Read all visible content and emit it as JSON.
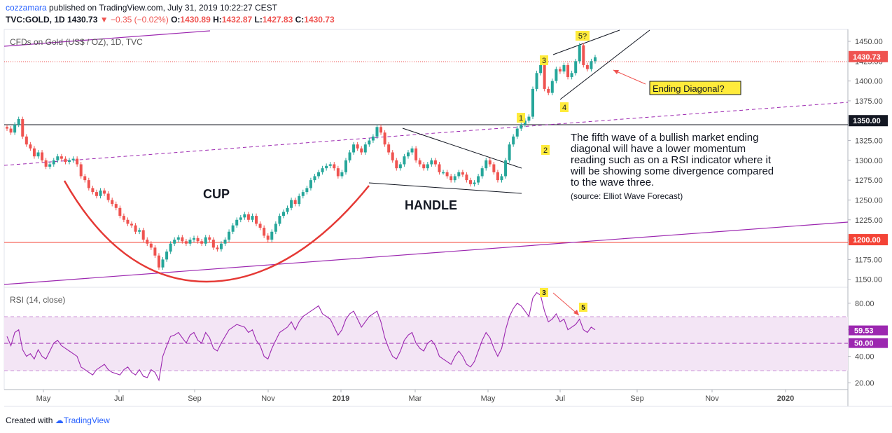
{
  "header": {
    "user": "cozzamara",
    "published": "published on TradingView.com, July 31, 2019 10:22:27 CEST",
    "symbol": "TVC:GOLD, 1D",
    "last": "1430.73",
    "arrow": "▼",
    "change": "−0.35 (−0.02%)",
    "o_label": "O:",
    "o_val": "1430.89",
    "h_label": "H:",
    "h_val": "1432.87",
    "l_label": "L:",
    "l_val": "1427.83",
    "c_label": "C:",
    "c_val": "1430.73"
  },
  "footer": {
    "created": "Created with",
    "brand": "TradingView"
  },
  "colors": {
    "up": "#26a69a",
    "down": "#ef5350",
    "cup": "#e53935",
    "rsi": "#9c27b0",
    "purple_line": "#9c27b0",
    "red_line": "#f44336"
  },
  "chart_data": [
    {
      "type": "candlestick",
      "title": "CFDs on Gold (US$ / OZ), 1D, TVC",
      "ylim": [
        1140,
        1465
      ],
      "y_ticks": [
        "1450.00",
        "1425.00",
        "1400.00",
        "1375.00",
        "1350.00",
        "1325.00",
        "1300.00",
        "1275.00",
        "1250.00",
        "1225.00",
        "1200.00",
        "1175.00",
        "1150.00"
      ],
      "price_labels": [
        {
          "value": 1430.73,
          "text": "1430.73",
          "color": "#ef5350"
        },
        {
          "value": 1350.0,
          "text": "1350.00",
          "color": "#131722"
        },
        {
          "value": 1200.0,
          "text": "1200.00",
          "color": "#f44336"
        }
      ],
      "horizontal_lines": [
        {
          "value": 1350,
          "color": "#131722"
        },
        {
          "value": 1200,
          "color": "#f44336"
        }
      ],
      "annotations": {
        "cup": "CUP",
        "handle": "HANDLE",
        "ending_diagonal": "Ending Diagonal?",
        "note_lines": [
          "The fifth wave of a bullish market ending",
          "diagonal will have a lower momentum",
          "reading such as on a RSI indicator where it",
          "will be showing some divergence compared",
          "to the wave three."
        ],
        "source": "(source: Elliot Wave Forecast)",
        "waves": [
          "1",
          "2",
          "3",
          "4",
          "5?"
        ]
      },
      "closes": [
        1340,
        1335,
        1345,
        1352,
        1330,
        1320,
        1315,
        1305,
        1310,
        1300,
        1292,
        1295,
        1300,
        1305,
        1302,
        1298,
        1300,
        1302,
        1295,
        1280,
        1275,
        1265,
        1260,
        1255,
        1262,
        1258,
        1250,
        1245,
        1240,
        1230,
        1225,
        1220,
        1218,
        1210,
        1212,
        1200,
        1195,
        1190,
        1180,
        1165,
        1175,
        1185,
        1195,
        1200,
        1203,
        1198,
        1195,
        1200,
        1202,
        1198,
        1195,
        1203,
        1200,
        1190,
        1188,
        1195,
        1200,
        1210,
        1218,
        1225,
        1228,
        1232,
        1225,
        1230,
        1220,
        1215,
        1205,
        1200,
        1210,
        1220,
        1230,
        1235,
        1240,
        1250,
        1245,
        1255,
        1260,
        1265,
        1275,
        1280,
        1285,
        1290,
        1293,
        1295,
        1290,
        1280,
        1285,
        1300,
        1310,
        1320,
        1315,
        1310,
        1320,
        1325,
        1330,
        1342,
        1335,
        1320,
        1310,
        1300,
        1290,
        1295,
        1305,
        1310,
        1315,
        1300,
        1295,
        1290,
        1295,
        1300,
        1295,
        1285,
        1285,
        1280,
        1275,
        1280,
        1285,
        1282,
        1275,
        1270,
        1272,
        1280,
        1290,
        1300,
        1295,
        1285,
        1275,
        1280,
        1300,
        1320,
        1330,
        1340,
        1345,
        1350,
        1355,
        1390,
        1410,
        1420,
        1390,
        1385,
        1400,
        1415,
        1412,
        1420,
        1405,
        1410,
        1425,
        1445,
        1420,
        1415,
        1425,
        1430
      ],
      "x_ticks": [
        "May",
        "Jul",
        "Sep",
        "Nov",
        "2019",
        "Mar",
        "May",
        "Jul",
        "Sep",
        "Nov",
        "2020"
      ]
    },
    {
      "type": "line",
      "title": "RSI (14, close)",
      "ylim": [
        15,
        92
      ],
      "y_ticks": [
        "80.00",
        "60.00",
        "40.00",
        "20.00"
      ],
      "bands": {
        "upper": 70,
        "lower": 30,
        "mid": 50
      },
      "price_labels": [
        {
          "value": 59.53,
          "text": "59.53",
          "color": "#9c27b0"
        },
        {
          "value": 50.0,
          "text": "50.00",
          "color": "#9c27b0"
        }
      ],
      "wave_labels": [
        "3",
        "5"
      ],
      "values": [
        55,
        48,
        58,
        60,
        45,
        40,
        42,
        38,
        45,
        40,
        38,
        44,
        50,
        52,
        48,
        46,
        44,
        42,
        40,
        32,
        30,
        28,
        26,
        30,
        32,
        34,
        30,
        28,
        27,
        26,
        30,
        32,
        28,
        26,
        30,
        25,
        24,
        30,
        28,
        22,
        40,
        48,
        55,
        56,
        58,
        54,
        50,
        56,
        58,
        52,
        50,
        58,
        54,
        46,
        44,
        50,
        55,
        60,
        62,
        64,
        63,
        62,
        58,
        60,
        52,
        48,
        40,
        38,
        46,
        52,
        58,
        60,
        62,
        66,
        60,
        66,
        70,
        72,
        74,
        76,
        78,
        72,
        70,
        68,
        62,
        56,
        60,
        68,
        72,
        74,
        68,
        62,
        66,
        70,
        72,
        74,
        66,
        54,
        46,
        40,
        38,
        44,
        52,
        56,
        58,
        50,
        46,
        44,
        50,
        52,
        48,
        40,
        38,
        36,
        34,
        40,
        44,
        40,
        34,
        32,
        36,
        44,
        52,
        58,
        54,
        46,
        40,
        46,
        60,
        70,
        76,
        80,
        78,
        74,
        70,
        84,
        88,
        86,
        74,
        66,
        68,
        72,
        66,
        68,
        60,
        62,
        64,
        68,
        60,
        58,
        62,
        60
      ]
    }
  ]
}
